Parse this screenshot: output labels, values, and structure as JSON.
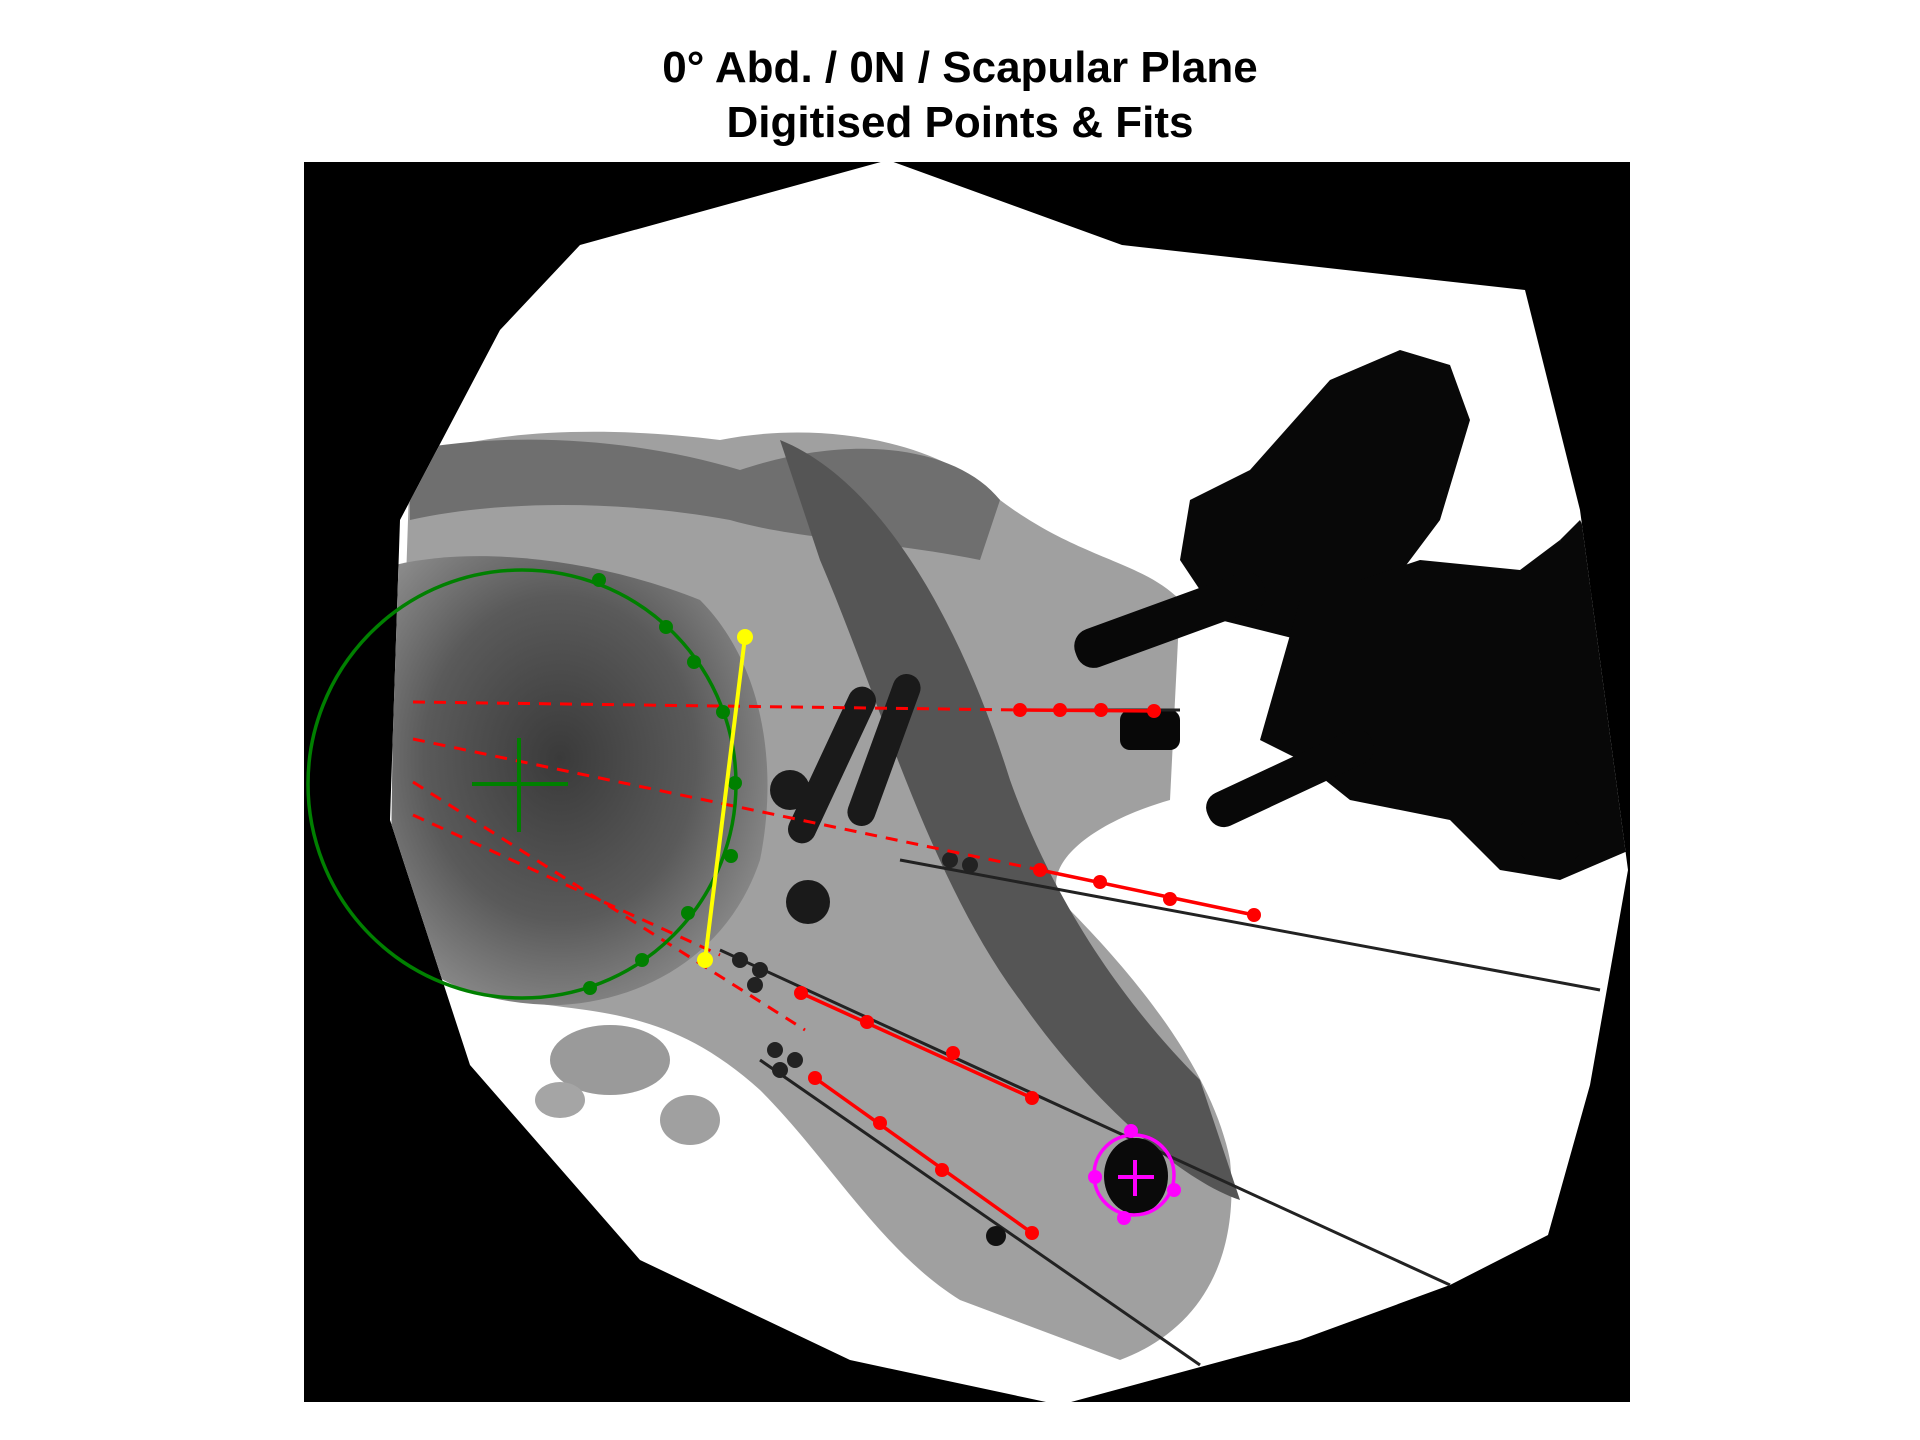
{
  "figure": {
    "title_line1": "0° Abd. / 0N / Scapular Plane",
    "title_line2": "Digitised Points & Fits"
  },
  "colors": {
    "background": "#ffffff",
    "image_border": "#000000",
    "glenoid_circle_fit": "#008000",
    "glenoid_rim_line": "#ffff00",
    "line_fits": "#ff0000",
    "marker_circle_fit": "#ff00ff"
  },
  "overlay_legend": {
    "glenoid_fit": "green-circle-with-center-cross",
    "rim_line": "yellow-line",
    "pin_fits": "red-points-with-dashed-extrapolation",
    "bead_fit": "magenta-circle-with-center-cross"
  },
  "icons": {
    "center_marker": "plus-cross"
  }
}
